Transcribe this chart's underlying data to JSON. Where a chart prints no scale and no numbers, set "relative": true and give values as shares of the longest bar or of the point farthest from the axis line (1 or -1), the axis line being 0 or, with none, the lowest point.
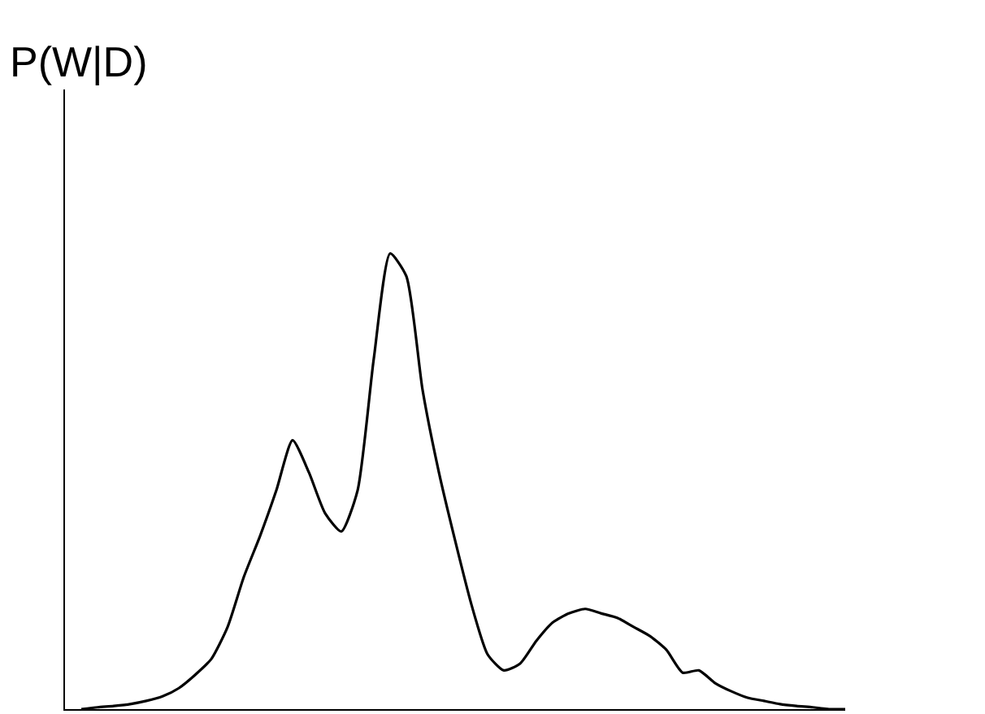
{
  "chart_data": {
    "type": "line",
    "ylabel": "P(W|D)",
    "relative": true,
    "marker": "none",
    "line_style": "solid",
    "categories": [
      null,
      null,
      null,
      null,
      null,
      null,
      null,
      null,
      null,
      null,
      null,
      null,
      null,
      null,
      null,
      null,
      null,
      null,
      null,
      null,
      null,
      null,
      null,
      null,
      null,
      null,
      null,
      null,
      null,
      null,
      null,
      null,
      null,
      null,
      null,
      null,
      null,
      null,
      null,
      null,
      null,
      null,
      null,
      null,
      null,
      null,
      null,
      null
    ],
    "series": [
      {
        "color": "#000000",
        "values": [
          0,
          0.004,
          0.007,
          0.011,
          0.018,
          0.028,
          0.046,
          0.075,
          0.11,
          0.18,
          0.29,
          0.38,
          0.48,
          0.59,
          0.52,
          0.43,
          0.39,
          0.48,
          0.77,
          1,
          0.95,
          0.7,
          0.52,
          0.37,
          0.23,
          0.12,
          0.085,
          0.1,
          0.15,
          0.19,
          0.21,
          0.22,
          0.21,
          0.2,
          0.18,
          0.16,
          0.13,
          0.08,
          0.085,
          0.057,
          0.039,
          0.025,
          0.018,
          0.011,
          0.007,
          0.004,
          0,
          0
        ]
      }
    ]
  }
}
